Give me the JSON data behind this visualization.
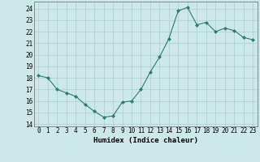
{
  "xlabel": "Humidex (Indice chaleur)",
  "ylabel": "",
  "x": [
    0,
    1,
    2,
    3,
    4,
    5,
    6,
    7,
    8,
    9,
    10,
    11,
    12,
    13,
    14,
    15,
    16,
    17,
    18,
    19,
    20,
    21,
    22,
    23
  ],
  "y": [
    18.2,
    18.0,
    17.0,
    16.7,
    16.4,
    15.7,
    15.1,
    14.6,
    14.7,
    15.9,
    16.0,
    17.0,
    18.5,
    19.8,
    21.4,
    23.8,
    24.1,
    22.6,
    22.8,
    22.0,
    22.3,
    22.1,
    21.5,
    21.3
  ],
  "ylim": [
    13.8,
    24.6
  ],
  "yticks": [
    14,
    15,
    16,
    17,
    18,
    19,
    20,
    21,
    22,
    23,
    24
  ],
  "xlim": [
    -0.5,
    23.5
  ],
  "line_color": "#2e7d6e",
  "marker_color": "#2e7d6e",
  "bg_color": "#cce8e8",
  "grid_color": "#aacfcf",
  "xlabel_fontsize": 6.5,
  "tick_fontsize": 5.5
}
